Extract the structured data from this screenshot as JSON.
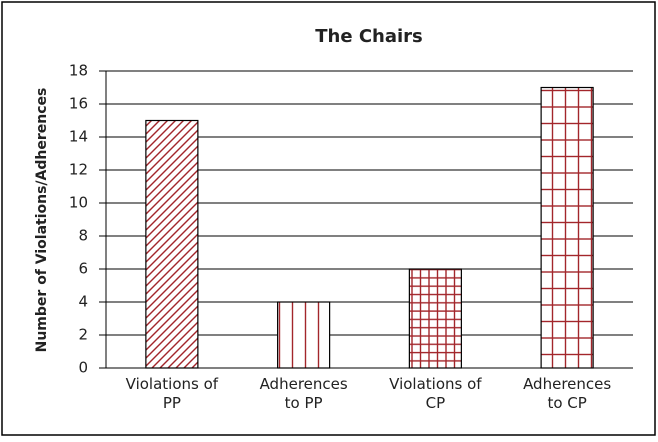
{
  "chart_data": {
    "type": "bar",
    "title": "The Chairs",
    "ylabel": "Number of Violations/Adherences",
    "categories": [
      "Violations of PP",
      "Adherences to PP",
      "Violations of CP",
      "Adherences to CP"
    ],
    "values": [
      15,
      4,
      6,
      17
    ],
    "color": "#a3262b",
    "patterns": [
      "diagonal",
      "vertical",
      "fine-grid",
      "grid"
    ],
    "ylim": [
      0,
      18
    ],
    "yticks": [
      0,
      2,
      4,
      6,
      8,
      10,
      12,
      14,
      16,
      18
    ],
    "grid": true
  }
}
